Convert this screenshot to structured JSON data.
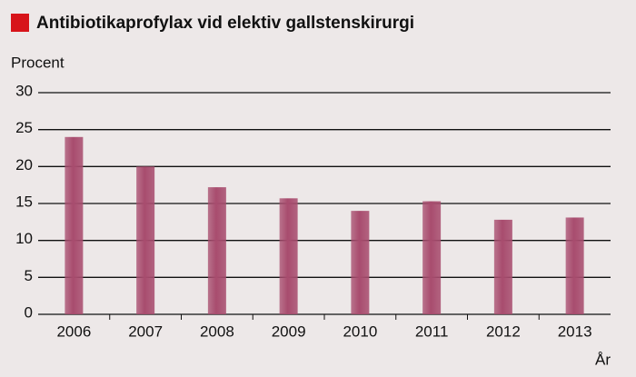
{
  "chart_data": {
    "type": "bar",
    "title": "Antibiotikaprofylax vid elektiv gallstenskirurgi",
    "y_label": "Procent",
    "x_label": "År",
    "categories": [
      "2006",
      "2007",
      "2008",
      "2009",
      "2010",
      "2011",
      "2012",
      "2013"
    ],
    "values": [
      24,
      20,
      17.2,
      15.7,
      14,
      15.3,
      12.8,
      13.1
    ],
    "color": "#a84c6e",
    "ylim": [
      0,
      30
    ],
    "yticks": [
      0,
      5,
      10,
      15,
      20,
      25,
      30
    ],
    "grid": true
  }
}
